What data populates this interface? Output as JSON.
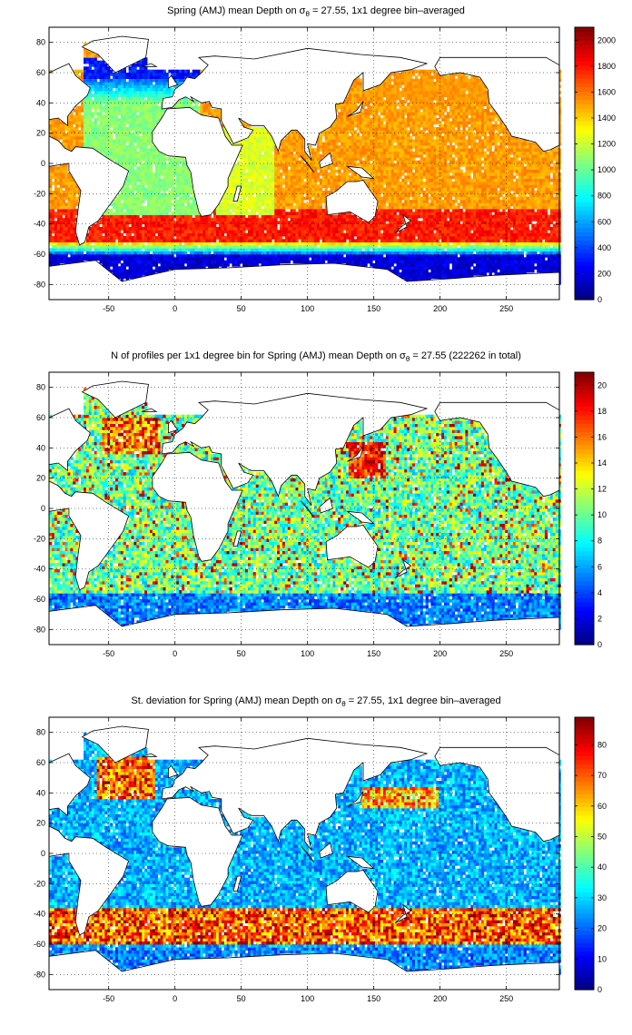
{
  "chart_data": [
    {
      "type": "heatmap",
      "title": "Spring (AMJ) mean Depth on σθ = 27.55, 1x1 degree bin–averaged",
      "title_parts": {
        "pre": "Spring (AMJ) mean Depth on σ",
        "sub": "θ",
        "post": " = 27.55, 1x1 degree bin–averaged"
      },
      "xlabel": "",
      "ylabel": "",
      "x_ticks": [
        -50,
        0,
        50,
        100,
        150,
        200,
        250
      ],
      "y_ticks": [
        80,
        60,
        40,
        20,
        0,
        -20,
        -40,
        -60,
        -80
      ],
      "xlim": [
        -95,
        290
      ],
      "ylim": [
        -90,
        90
      ],
      "grid": true,
      "colorbar": {
        "min": 0,
        "max": 2100,
        "ticks": [
          0,
          200,
          400,
          600,
          800,
          1000,
          1200,
          1400,
          1600,
          1800,
          2000
        ]
      }
    },
    {
      "type": "heatmap",
      "title": "N of profiles per 1x1 degree bin for Spring (AMJ) mean Depth on σθ = 27.55 (222262 in total)",
      "title_parts": {
        "pre": "N of profiles per 1x1 degree bin for Spring (AMJ) mean Depth on σ",
        "sub": "θ",
        "post": " = 27.55 (222262 in total)"
      },
      "xlabel": "",
      "ylabel": "",
      "x_ticks": [
        -50,
        0,
        50,
        100,
        150,
        200,
        250
      ],
      "y_ticks": [
        80,
        60,
        40,
        20,
        0,
        -20,
        -40,
        -60,
        -80
      ],
      "xlim": [
        -95,
        290
      ],
      "ylim": [
        -90,
        90
      ],
      "grid": true,
      "colorbar": {
        "min": 0,
        "max": 21,
        "ticks": [
          0,
          2,
          4,
          6,
          8,
          10,
          12,
          14,
          16,
          18,
          20
        ]
      }
    },
    {
      "type": "heatmap",
      "title": "St. deviation for Spring (AMJ) mean Depth on σθ = 27.55, 1x1 degree bin–averaged",
      "title_parts": {
        "pre": "St. deviation for Spring (AMJ) mean Depth on σ",
        "sub": "θ",
        "post": " = 27.55, 1x1 degree bin–averaged"
      },
      "xlabel": "",
      "ylabel": "",
      "x_ticks": [
        -50,
        0,
        50,
        100,
        150,
        200,
        250
      ],
      "y_ticks": [
        80,
        60,
        40,
        20,
        0,
        -20,
        -40,
        -60,
        -80
      ],
      "xlim": [
        -95,
        290
      ],
      "ylim": [
        -90,
        90
      ],
      "grid": true,
      "colorbar": {
        "min": 0,
        "max": 89,
        "ticks": [
          0,
          10,
          20,
          30,
          40,
          50,
          60,
          70,
          80
        ]
      }
    }
  ]
}
